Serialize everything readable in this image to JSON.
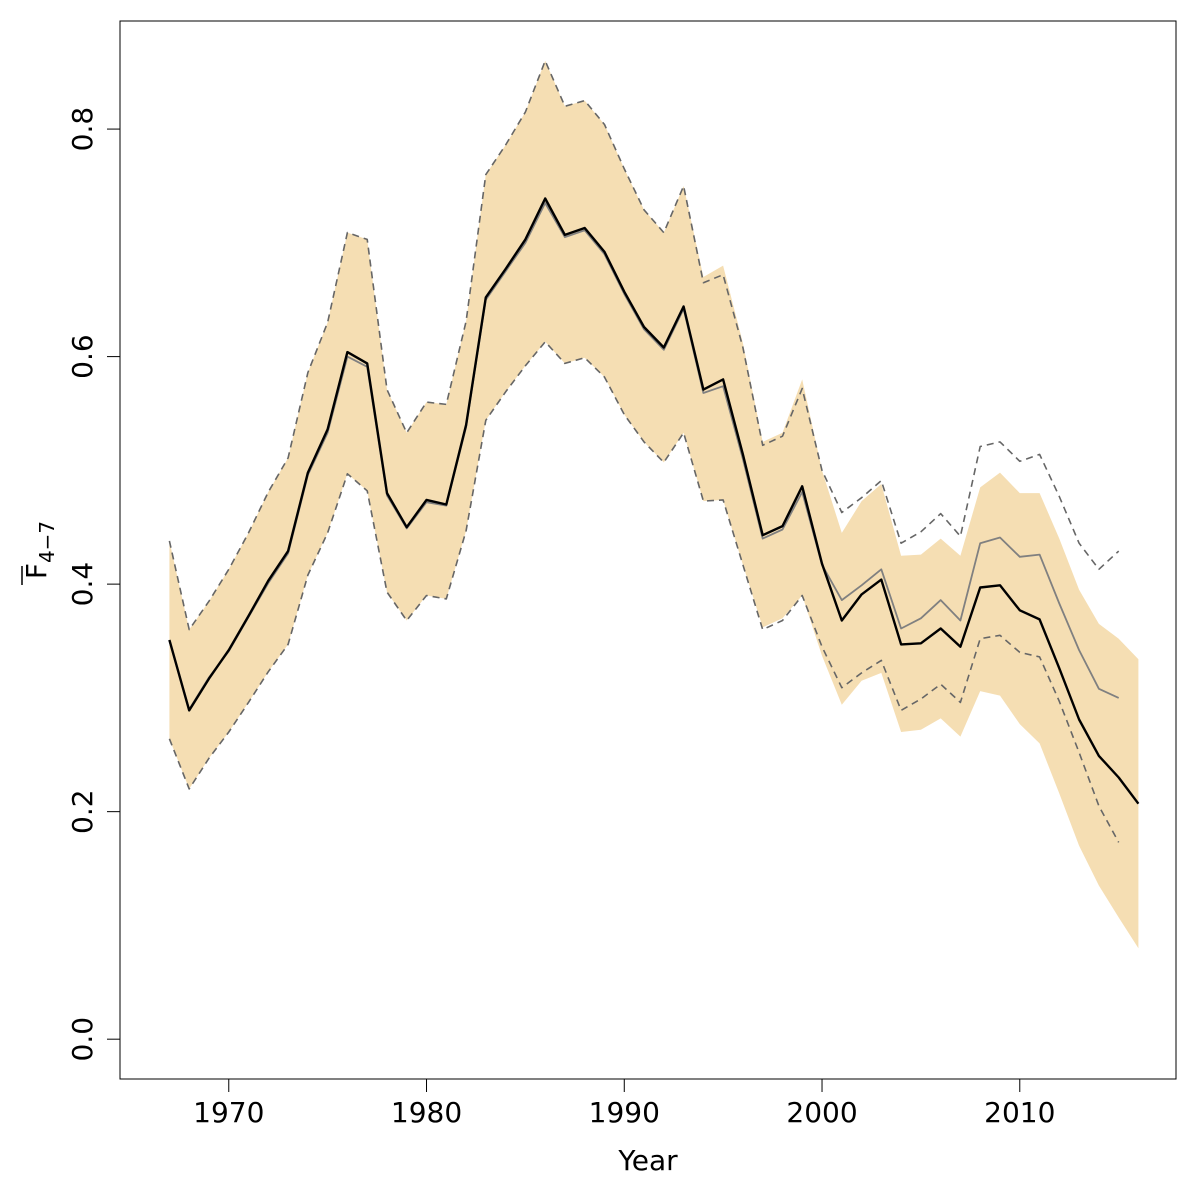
{
  "chart_data": {
    "type": "line",
    "xlabel": "Year",
    "ylabel": {
      "main": "F",
      "subscript": "4−7"
    },
    "xlim": [
      1964.5,
      2017.9
    ],
    "ylim": [
      -0.035,
      0.895
    ],
    "xticks": [
      1970,
      1980,
      1990,
      2000,
      2010
    ],
    "yticks": [
      "0.0",
      "0.2",
      "0.4",
      "0.6",
      "0.8"
    ],
    "colors": {
      "band": "#f5deb3",
      "current": "#000000",
      "previous": "#808080",
      "previous_ci": "#666666"
    },
    "series": [
      {
        "name": "current_lower",
        "x": [
          1967,
          1968,
          1969,
          1970,
          1971,
          1972,
          1973,
          1974,
          1975,
          1976,
          1977,
          1978,
          1979,
          1980,
          1981,
          1982,
          1983,
          1984,
          1985,
          1986,
          1987,
          1988,
          1989,
          1990,
          1991,
          1992,
          1993,
          1994,
          1995,
          1996,
          1997,
          1998,
          1999,
          2000,
          2001,
          2002,
          2003,
          2004,
          2005,
          2006,
          2007,
          2008,
          2009,
          2010,
          2011,
          2012,
          2013,
          2014,
          2015,
          2016
        ],
        "values": [
          0.264,
          0.22,
          0.247,
          0.27,
          0.296,
          0.323,
          0.347,
          0.408,
          0.445,
          0.497,
          0.482,
          0.393,
          0.368,
          0.39,
          0.387,
          0.447,
          0.544,
          0.569,
          0.592,
          0.613,
          0.594,
          0.599,
          0.582,
          0.549,
          0.525,
          0.507,
          0.533,
          0.473,
          0.474,
          0.417,
          0.362,
          0.37,
          0.39,
          0.337,
          0.294,
          0.315,
          0.322,
          0.27,
          0.272,
          0.282,
          0.266,
          0.306,
          0.302,
          0.277,
          0.26,
          0.216,
          0.17,
          0.135,
          0.107,
          0.08
        ]
      },
      {
        "name": "current_upper",
        "x": [
          1967,
          1968,
          1969,
          1970,
          1971,
          1972,
          1973,
          1974,
          1975,
          1976,
          1977,
          1978,
          1979,
          1980,
          1981,
          1982,
          1983,
          1984,
          1985,
          1986,
          1987,
          1988,
          1989,
          1990,
          1991,
          1992,
          1993,
          1994,
          1995,
          1996,
          1997,
          1998,
          1999,
          2000,
          2001,
          2002,
          2003,
          2004,
          2005,
          2006,
          2007,
          2008,
          2009,
          2010,
          2011,
          2012,
          2013,
          2014,
          2015,
          2016
        ],
        "values": [
          0.438,
          0.36,
          0.385,
          0.413,
          0.445,
          0.481,
          0.511,
          0.586,
          0.63,
          0.709,
          0.703,
          0.571,
          0.533,
          0.56,
          0.558,
          0.631,
          0.76,
          0.786,
          0.815,
          0.86,
          0.82,
          0.825,
          0.804,
          0.765,
          0.729,
          0.709,
          0.75,
          0.67,
          0.68,
          0.612,
          0.525,
          0.533,
          0.58,
          0.5,
          0.445,
          0.473,
          0.488,
          0.425,
          0.426,
          0.44,
          0.425,
          0.485,
          0.498,
          0.48,
          0.48,
          0.44,
          0.395,
          0.365,
          0.352,
          0.334
        ]
      },
      {
        "name": "current_estimate",
        "x": [
          1967,
          1968,
          1969,
          1970,
          1971,
          1972,
          1973,
          1974,
          1975,
          1976,
          1977,
          1978,
          1979,
          1980,
          1981,
          1982,
          1983,
          1984,
          1985,
          1986,
          1987,
          1988,
          1989,
          1990,
          1991,
          1992,
          1993,
          1994,
          1995,
          1996,
          1997,
          1998,
          1999,
          2000,
          2001,
          2002,
          2003,
          2004,
          2005,
          2006,
          2007,
          2008,
          2009,
          2010,
          2011,
          2012,
          2013,
          2014,
          2015,
          2016
        ],
        "values": [
          0.351,
          0.289,
          0.317,
          0.342,
          0.372,
          0.403,
          0.429,
          0.498,
          0.536,
          0.604,
          0.594,
          0.48,
          0.45,
          0.474,
          0.47,
          0.54,
          0.652,
          0.677,
          0.703,
          0.739,
          0.707,
          0.713,
          0.692,
          0.657,
          0.626,
          0.608,
          0.644,
          0.571,
          0.58,
          0.514,
          0.443,
          0.451,
          0.486,
          0.418,
          0.368,
          0.391,
          0.404,
          0.347,
          0.348,
          0.361,
          0.345,
          0.397,
          0.399,
          0.377,
          0.369,
          0.326,
          0.281,
          0.249,
          0.23,
          0.207
        ]
      },
      {
        "name": "previous_estimate",
        "x": [
          1967,
          1968,
          1969,
          1970,
          1971,
          1972,
          1973,
          1974,
          1975,
          1976,
          1977,
          1978,
          1979,
          1980,
          1981,
          1982,
          1983,
          1984,
          1985,
          1986,
          1987,
          1988,
          1989,
          1990,
          1991,
          1992,
          1993,
          1994,
          1995,
          1996,
          1997,
          1998,
          1999,
          2000,
          2001,
          2002,
          2003,
          2004,
          2005,
          2006,
          2007,
          2008,
          2009,
          2010,
          2011,
          2012,
          2013,
          2014,
          2015
        ],
        "values": [
          0.35,
          0.29,
          0.318,
          0.341,
          0.371,
          0.401,
          0.427,
          0.496,
          0.533,
          0.6,
          0.591,
          0.478,
          0.449,
          0.472,
          0.469,
          0.538,
          0.65,
          0.675,
          0.7,
          0.735,
          0.705,
          0.711,
          0.69,
          0.655,
          0.624,
          0.606,
          0.642,
          0.568,
          0.574,
          0.51,
          0.44,
          0.448,
          0.481,
          0.417,
          0.386,
          0.399,
          0.413,
          0.361,
          0.37,
          0.386,
          0.368,
          0.436,
          0.441,
          0.424,
          0.426,
          0.383,
          0.342,
          0.308,
          0.3
        ]
      },
      {
        "name": "previous_lower",
        "x": [
          1967,
          1968,
          1969,
          1970,
          1971,
          1972,
          1973,
          1974,
          1975,
          1976,
          1977,
          1978,
          1979,
          1980,
          1981,
          1982,
          1983,
          1984,
          1985,
          1986,
          1987,
          1988,
          1989,
          1990,
          1991,
          1992,
          1993,
          1994,
          1995,
          1996,
          1997,
          1998,
          1999,
          2000,
          2001,
          2002,
          2003,
          2004,
          2005,
          2006,
          2007,
          2008,
          2009,
          2010,
          2011,
          2012,
          2013,
          2014,
          2015
        ],
        "values": [
          0.264,
          0.22,
          0.247,
          0.27,
          0.296,
          0.323,
          0.347,
          0.408,
          0.445,
          0.497,
          0.482,
          0.393,
          0.368,
          0.39,
          0.387,
          0.447,
          0.544,
          0.569,
          0.592,
          0.613,
          0.594,
          0.599,
          0.582,
          0.549,
          0.525,
          0.507,
          0.533,
          0.473,
          0.474,
          0.417,
          0.36,
          0.368,
          0.39,
          0.345,
          0.309,
          0.322,
          0.333,
          0.289,
          0.299,
          0.312,
          0.296,
          0.352,
          0.355,
          0.34,
          0.336,
          0.297,
          0.252,
          0.205,
          0.173
        ]
      },
      {
        "name": "previous_upper",
        "x": [
          1967,
          1968,
          1969,
          1970,
          1971,
          1972,
          1973,
          1974,
          1975,
          1976,
          1977,
          1978,
          1979,
          1980,
          1981,
          1982,
          1983,
          1984,
          1985,
          1986,
          1987,
          1988,
          1989,
          1990,
          1991,
          1992,
          1993,
          1994,
          1995,
          1996,
          1997,
          1998,
          1999,
          2000,
          2001,
          2002,
          2003,
          2004,
          2005,
          2006,
          2007,
          2008,
          2009,
          2010,
          2011,
          2012,
          2013,
          2014,
          2015
        ],
        "values": [
          0.438,
          0.36,
          0.385,
          0.413,
          0.445,
          0.481,
          0.511,
          0.586,
          0.63,
          0.709,
          0.703,
          0.571,
          0.533,
          0.56,
          0.558,
          0.631,
          0.76,
          0.786,
          0.815,
          0.86,
          0.82,
          0.825,
          0.804,
          0.765,
          0.729,
          0.709,
          0.75,
          0.665,
          0.672,
          0.608,
          0.522,
          0.53,
          0.572,
          0.5,
          0.463,
          0.476,
          0.491,
          0.436,
          0.446,
          0.462,
          0.442,
          0.521,
          0.525,
          0.508,
          0.514,
          0.477,
          0.436,
          0.413,
          0.429
        ]
      }
    ]
  }
}
